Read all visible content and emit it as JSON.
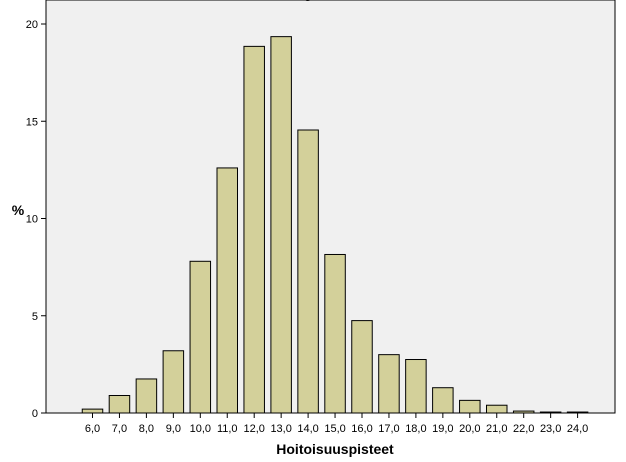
{
  "chart_data": {
    "type": "bar",
    "title_fragment": "g",
    "xlabel": "Hoitoisuuspisteet",
    "ylabel": "%",
    "ylim": [
      0,
      21
    ],
    "yticks": [
      "0",
      "5",
      "10",
      "15",
      "20"
    ],
    "categories": [
      "6,0",
      "7,0",
      "8,0",
      "9,0",
      "10,0",
      "11,0",
      "12,0",
      "13,0",
      "14,0",
      "15,0",
      "16,0",
      "17,0",
      "18,0",
      "19,0",
      "20,0",
      "21,0",
      "22,0",
      "23,0",
      "24,0"
    ],
    "values": [
      0.2,
      0.9,
      1.75,
      3.2,
      7.8,
      12.6,
      18.85,
      19.35,
      14.55,
      8.15,
      4.75,
      3.0,
      2.75,
      1.3,
      0.65,
      0.4,
      0.1,
      0.05,
      0.05
    ],
    "bar_color": "#d3d09a",
    "plot_background": "#f0f0f0",
    "bar_edge_color": "#000000",
    "grid": false
  }
}
